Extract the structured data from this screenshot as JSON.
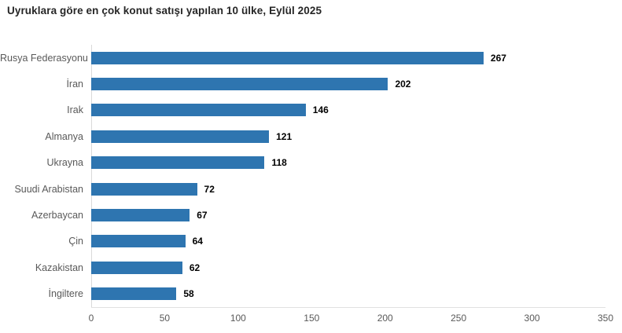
{
  "header": {
    "title": "Uyruklara göre en çok konut satışı yapılan 10 ülke, Eylül 2025"
  },
  "chart_data": {
    "type": "bar",
    "orientation": "horizontal",
    "title": "Uyruklara göre en çok konut satışı yapılan 10 ülke, Eylül 2025",
    "categories": [
      "Rusya Federasyonu",
      "İran",
      "Irak",
      "Almanya",
      "Ukrayna",
      "Suudi Arabistan",
      "Azerbaycan",
      "Çin",
      "Kazakistan",
      "İngiltere"
    ],
    "values": [
      267,
      202,
      146,
      121,
      118,
      72,
      67,
      64,
      62,
      58
    ],
    "value_labels_shown": true,
    "xlabel": "",
    "ylabel": "",
    "xlim": [
      0,
      350
    ],
    "x_ticks": [
      "0",
      "50",
      "100",
      "150",
      "200",
      "250",
      "300",
      "350"
    ],
    "grid": false,
    "legend": "none",
    "bar_color": "#2e75b0",
    "category_label_color": "#595959",
    "value_label_color": "#000000",
    "axis_line_color": "#d9d9d9"
  }
}
